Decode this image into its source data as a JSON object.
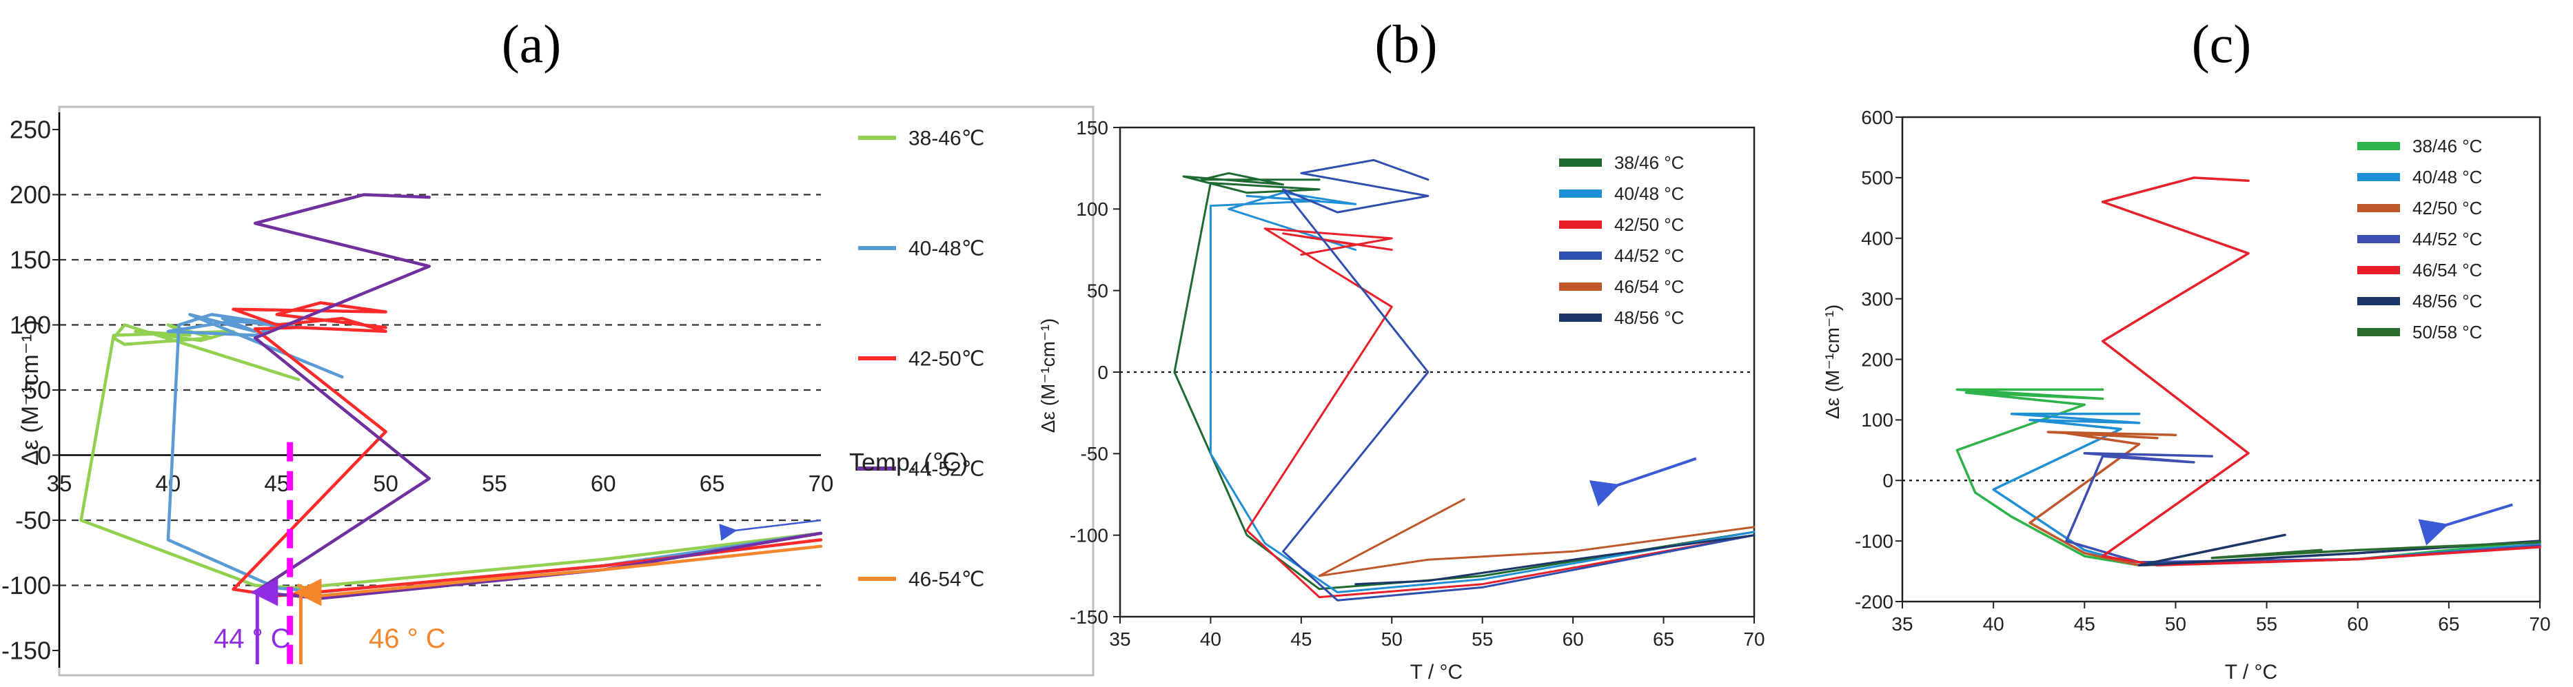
{
  "figure": {
    "panels": [
      {
        "letter": "(a)",
        "ylabel": "Δε (M⁻¹cm⁻¹ )",
        "xlabel": "Temp. (℃)",
        "annotations": [
          {
            "text": "44 ° C",
            "color": "#8e2de2"
          },
          {
            "text": "46 ° C",
            "color": "#f5862b"
          }
        ]
      },
      {
        "letter": "(b)",
        "ylabel": "Δε (M⁻¹cm⁻¹)",
        "xlabel": "T / °C"
      },
      {
        "letter": "(c)",
        "ylabel": "Δε (M⁻¹cm⁻¹)",
        "xlabel": "T / °C"
      }
    ]
  },
  "chart_data": [
    {
      "type": "line",
      "title": "(a)",
      "xlabel": "Temp. (℃)",
      "ylabel": "Δε (M⁻¹cm⁻¹ )",
      "xlim": [
        35,
        70
      ],
      "ylim": [
        -150,
        250
      ],
      "xticks": [
        35,
        40,
        45,
        50,
        55,
        60,
        65,
        70
      ],
      "yticks": [
        -150,
        -100,
        -50,
        0,
        50,
        100,
        150,
        200,
        250
      ],
      "grid": "horizontal dashed",
      "legend_position": "right",
      "series": [
        {
          "name": "38-46℃",
          "color": "#92d050",
          "points": [
            [
              46,
              58
            ],
            [
              38,
              100
            ],
            [
              37.5,
              90
            ],
            [
              38,
              85
            ],
            [
              42,
              90
            ],
            [
              40,
              100
            ],
            [
              41,
              92
            ],
            [
              38.5,
              95
            ],
            [
              41.5,
              88
            ],
            [
              43,
              95
            ],
            [
              37.5,
              92
            ],
            [
              36,
              -50
            ],
            [
              44,
              -100
            ],
            [
              46,
              -102
            ],
            [
              60,
              -80
            ],
            [
              70,
              -60
            ]
          ]
        },
        {
          "name": "40-48℃",
          "color": "#5b9bd5",
          "points": [
            [
              48,
              60
            ],
            [
              41,
              108
            ],
            [
              44,
              95
            ],
            [
              42.5,
              105
            ],
            [
              45,
              100
            ],
            [
              44,
              92
            ],
            [
              40,
              95
            ],
            [
              43,
              103
            ],
            [
              46,
              98
            ],
            [
              42,
              108
            ],
            [
              40.5,
              100
            ],
            [
              40,
              -65
            ],
            [
              45,
              -102
            ],
            [
              47,
              -105
            ],
            [
              60,
              -85
            ],
            [
              70,
              -60
            ]
          ]
        },
        {
          "name": "42-50℃",
          "color": "#ff2a2a",
          "points": [
            [
              50,
              98
            ],
            [
              45,
              108
            ],
            [
              47,
              117
            ],
            [
              50,
              110
            ],
            [
              43,
              112
            ],
            [
              45,
              100
            ],
            [
              48,
              105
            ],
            [
              50,
              95
            ],
            [
              46,
              98
            ],
            [
              44,
              97
            ],
            [
              50,
              18
            ],
            [
              43,
              -103
            ],
            [
              45,
              -108
            ],
            [
              60,
              -85
            ],
            [
              70,
              -65
            ]
          ]
        },
        {
          "name": "44-52℃",
          "color": "#7030a0",
          "points": [
            [
              52,
              198
            ],
            [
              49,
              200
            ],
            [
              44,
              178
            ],
            [
              52,
              145
            ],
            [
              44,
              90
            ],
            [
              52,
              -18
            ],
            [
              44,
              -105
            ],
            [
              47,
              -110
            ],
            [
              60,
              -88
            ],
            [
              70,
              -60
            ]
          ]
        },
        {
          "name": "46-54℃",
          "color": "#f5862b",
          "points": [
            [
              46,
              -100
            ],
            [
              47,
              -108
            ],
            [
              55,
              -95
            ],
            [
              60,
              -88
            ],
            [
              70,
              -70
            ]
          ]
        }
      ],
      "markers": [
        {
          "type": "dashed_vertical",
          "x": 45.6,
          "color": "#ff00ff"
        },
        {
          "type": "arrow",
          "x": 44.1,
          "color": "#8e2de2",
          "label": "44 ° C"
        },
        {
          "type": "arrow",
          "x": 46.1,
          "color": "#f5862b",
          "label": "46 ° C"
        },
        {
          "type": "arrow",
          "from": [
            70,
            -50
          ],
          "to": [
            66,
            -58
          ],
          "color": "#3b5bd6"
        }
      ]
    },
    {
      "type": "line",
      "title": "(b)",
      "xlabel": "T / °C",
      "ylabel": "Δε (M⁻¹cm⁻¹)",
      "xlim": [
        35,
        70
      ],
      "ylim": [
        -150,
        150
      ],
      "xticks": [
        35,
        40,
        45,
        50,
        55,
        60,
        65,
        70
      ],
      "yticks": [
        -150,
        -100,
        -50,
        0,
        50,
        100,
        150
      ],
      "grid": "dotted zero line",
      "legend_position": "top-right",
      "series": [
        {
          "name": "38/46 °C",
          "color": "#1e6b32",
          "points": [
            [
              46,
              118
            ],
            [
              39.5,
              118
            ],
            [
              41,
              122
            ],
            [
              44,
              115
            ],
            [
              38.5,
              120
            ],
            [
              42,
              110
            ],
            [
              46,
              112
            ],
            [
              40,
              116
            ],
            [
              38,
              0
            ],
            [
              42,
              -100
            ],
            [
              46,
              -133
            ],
            [
              55,
              -125
            ],
            [
              70,
              -98
            ]
          ]
        },
        {
          "name": "40/48 °C",
          "color": "#1f8fd6",
          "points": [
            [
              48,
              75
            ],
            [
              41,
              100
            ],
            [
              44,
              110
            ],
            [
              48,
              103
            ],
            [
              42,
              108
            ],
            [
              46,
              105
            ],
            [
              40,
              102
            ],
            [
              40,
              -50
            ],
            [
              43,
              -105
            ],
            [
              47,
              -135
            ],
            [
              55,
              -127
            ],
            [
              70,
              -98
            ]
          ]
        },
        {
          "name": "42/50 °C",
          "color": "#e8202a",
          "points": [
            [
              50,
              75
            ],
            [
              44,
              85
            ],
            [
              48,
              78
            ],
            [
              45,
              72
            ],
            [
              50,
              82
            ],
            [
              43,
              88
            ],
            [
              50,
              40
            ],
            [
              42,
              -97
            ],
            [
              46,
              -138
            ],
            [
              55,
              -130
            ],
            [
              70,
              -100
            ]
          ]
        },
        {
          "name": "44/52 °C",
          "color": "#2e4faf",
          "points": [
            [
              52,
              118
            ],
            [
              49,
              130
            ],
            [
              45,
              122
            ],
            [
              52,
              108
            ],
            [
              47,
              98
            ],
            [
              44,
              112
            ],
            [
              52,
              0
            ],
            [
              44,
              -110
            ],
            [
              47,
              -140
            ],
            [
              55,
              -132
            ],
            [
              70,
              -100
            ]
          ]
        },
        {
          "name": "46/54 °C",
          "color": "#c0572a",
          "points": [
            [
              54,
              -78
            ],
            [
              46,
              -125
            ],
            [
              52,
              -115
            ],
            [
              60,
              -110
            ],
            [
              70,
              -95
            ]
          ]
        },
        {
          "name": "48/56 °C",
          "color": "#1b3767",
          "points": [
            [
              48,
              -130
            ],
            [
              52,
              -128
            ],
            [
              60,
              -115
            ],
            [
              70,
              -100
            ]
          ]
        }
      ],
      "markers": [
        {
          "type": "arrow",
          "from": [
            66.8,
            -53
          ],
          "to": [
            62.3,
            -70
          ],
          "color": "#3b5bd6"
        }
      ]
    },
    {
      "type": "line",
      "title": "(c)",
      "xlabel": "T / °C",
      "ylabel": "Δε (M⁻¹cm⁻¹)",
      "xlim": [
        35,
        70
      ],
      "ylim": [
        -200,
        600
      ],
      "xticks": [
        35,
        40,
        45,
        50,
        55,
        60,
        65,
        70
      ],
      "yticks": [
        -200,
        -100,
        0,
        100,
        200,
        300,
        400,
        500,
        600
      ],
      "grid": "dotted zero line",
      "legend_position": "top-right",
      "series": [
        {
          "name": "38/46 °C",
          "color": "#2eb24a",
          "points": [
            [
              46,
              150
            ],
            [
              38,
              150
            ],
            [
              46,
              135
            ],
            [
              38.5,
              145
            ],
            [
              45,
              125
            ],
            [
              38,
              50
            ],
            [
              39,
              -20
            ],
            [
              41,
              -60
            ],
            [
              45,
              -125
            ],
            [
              48,
              -140
            ],
            [
              60,
              -130
            ],
            [
              70,
              -100
            ]
          ]
        },
        {
          "name": "40/48 °C",
          "color": "#1f8fd6",
          "points": [
            [
              48,
              110
            ],
            [
              41,
              110
            ],
            [
              48,
              95
            ],
            [
              42,
              100
            ],
            [
              47,
              85
            ],
            [
              40,
              -15
            ],
            [
              45,
              -115
            ],
            [
              48,
              -140
            ],
            [
              60,
              -130
            ],
            [
              70,
              -105
            ]
          ]
        },
        {
          "name": "42/50 °C",
          "color": "#c0572a",
          "points": [
            [
              50,
              75
            ],
            [
              43,
              80
            ],
            [
              49,
              70
            ],
            [
              44,
              78
            ],
            [
              48,
              60
            ],
            [
              42,
              -70
            ],
            [
              45,
              -120
            ],
            [
              48,
              -140
            ],
            [
              60,
              -130
            ],
            [
              70,
              -108
            ]
          ]
        },
        {
          "name": "44/52 °C",
          "color": "#3d4fb0",
          "points": [
            [
              52,
              40
            ],
            [
              45,
              45
            ],
            [
              51,
              30
            ],
            [
              46,
              40
            ],
            [
              44,
              -100
            ],
            [
              48,
              -135
            ],
            [
              60,
              -130
            ],
            [
              70,
              -108
            ]
          ]
        },
        {
          "name": "46/54 °C",
          "color": "#e8202a",
          "points": [
            [
              54,
              495
            ],
            [
              51,
              500
            ],
            [
              46,
              460
            ],
            [
              54,
              375
            ],
            [
              46,
              230
            ],
            [
              54,
              45
            ],
            [
              46,
              -125
            ],
            [
              49,
              -140
            ],
            [
              60,
              -130
            ],
            [
              70,
              -110
            ]
          ]
        },
        {
          "name": "48/56 °C",
          "color": "#1b3767",
          "points": [
            [
              56,
              -90
            ],
            [
              48,
              -140
            ],
            [
              60,
              -120
            ],
            [
              70,
              -100
            ]
          ]
        },
        {
          "name": "50/58 °C",
          "color": "#2a6b2e",
          "points": [
            [
              58,
              -115
            ],
            [
              52,
              -128
            ],
            [
              60,
              -115
            ],
            [
              70,
              -102
            ]
          ]
        }
      ],
      "markers": [
        {
          "type": "arrow",
          "from": [
            68.5,
            -40
          ],
          "to": [
            64.7,
            -75
          ],
          "color": "#3b5bd6"
        }
      ]
    }
  ]
}
